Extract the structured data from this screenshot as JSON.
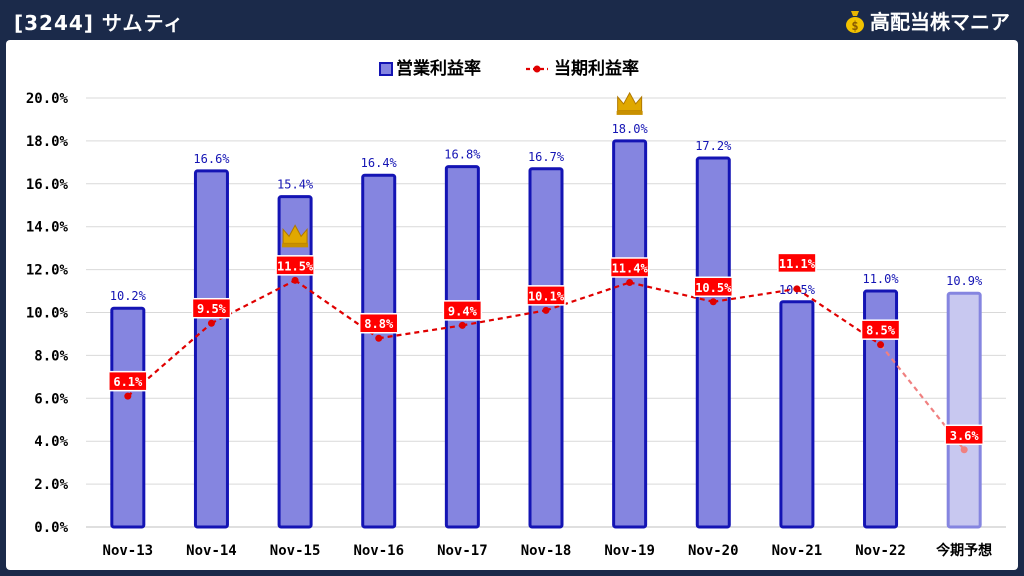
{
  "header": {
    "title": "[3244] サムティ",
    "brand": "高配当株マニア"
  },
  "chart_data": {
    "type": "bar",
    "categories": [
      "Nov-13",
      "Nov-14",
      "Nov-15",
      "Nov-16",
      "Nov-17",
      "Nov-18",
      "Nov-19",
      "Nov-20",
      "Nov-21",
      "Nov-22",
      "今期予想"
    ],
    "series": [
      {
        "name": "営業利益率",
        "kind": "bar",
        "values": [
          10.2,
          16.6,
          15.4,
          16.4,
          16.8,
          16.7,
          18.0,
          17.2,
          10.5,
          11.0,
          10.9
        ],
        "labels": [
          "10.2%",
          "16.6%",
          "15.4%",
          "16.4%",
          "16.8%",
          "16.7%",
          "18.0%",
          "17.2%",
          "10.5%",
          "11.0%",
          "10.9%"
        ],
        "color": "#8585e0",
        "border": "#1414b4",
        "forecast_color": "#c8c8f0"
      },
      {
        "name": "当期利益率",
        "kind": "line",
        "values": [
          6.1,
          9.5,
          11.5,
          8.8,
          9.4,
          10.1,
          11.4,
          10.5,
          11.1,
          8.5,
          3.6
        ],
        "labels": [
          "6.1%",
          "9.5%",
          "11.5%",
          "8.8%",
          "9.4%",
          "10.1%",
          "11.4%",
          "10.5%",
          "11.1%",
          "8.5%",
          "3.6%"
        ],
        "color": "#e00000",
        "forecast_color": "#f08080"
      }
    ],
    "y_ticks": [
      "0.0%",
      "2.0%",
      "4.0%",
      "6.0%",
      "8.0%",
      "10.0%",
      "12.0%",
      "14.0%",
      "16.0%",
      "18.0%",
      "20.0%"
    ],
    "ylim": [
      0,
      20
    ],
    "legend_position": "top-center",
    "grid": true,
    "crowns": [
      {
        "series": "営業利益率",
        "category": "Nov-19"
      },
      {
        "series": "当期利益率",
        "category": "Nov-15"
      }
    ],
    "title": "",
    "xlabel": "",
    "ylabel": ""
  }
}
